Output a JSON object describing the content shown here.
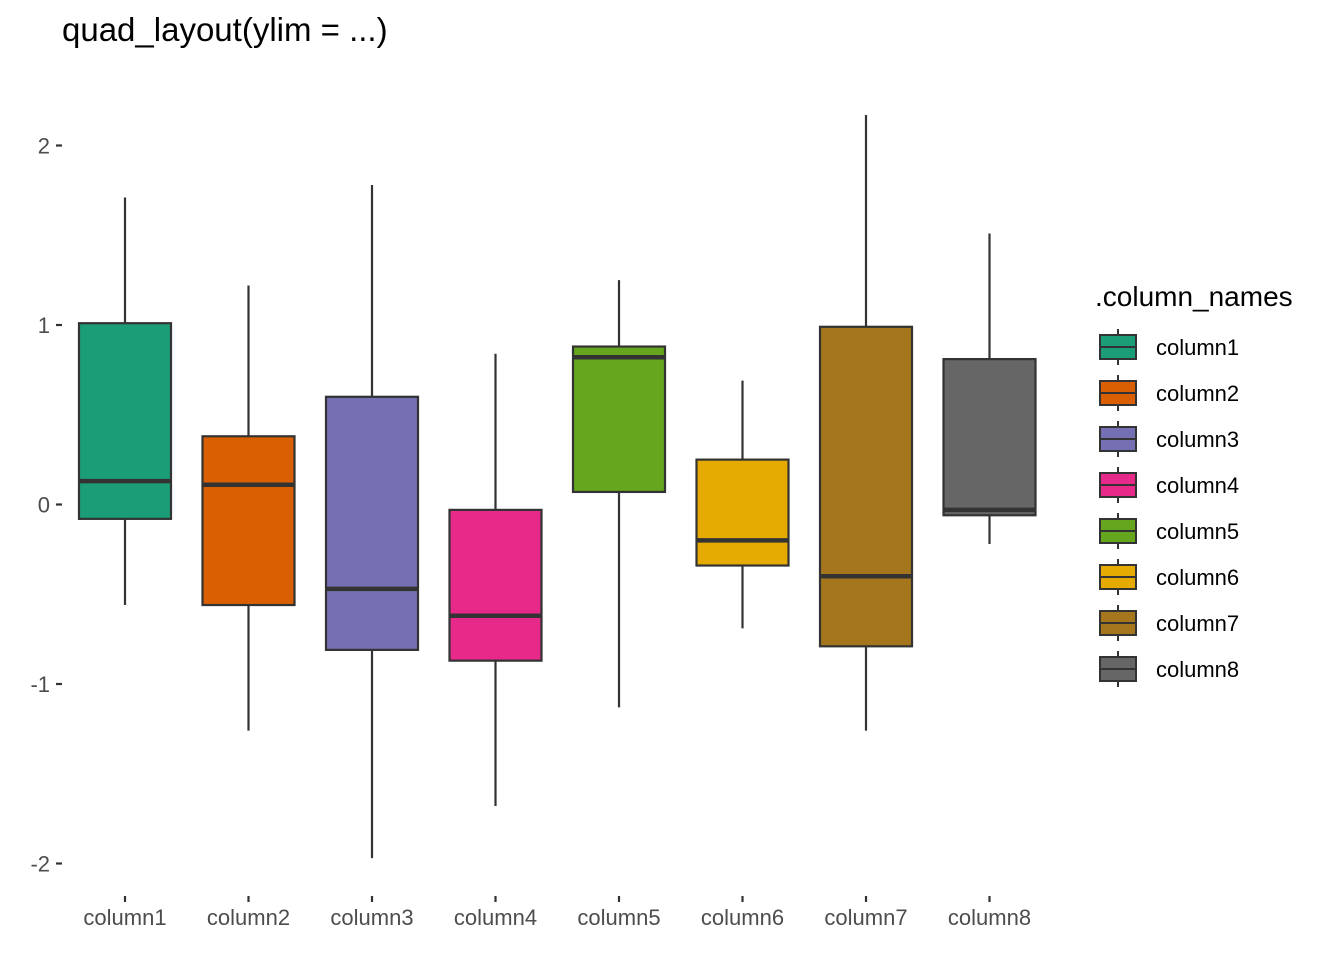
{
  "chart_data": {
    "type": "box",
    "title": "quad_layout(ylim = ...)",
    "xlabel": "",
    "ylabel": "",
    "ylim": [
      -2.2,
      2.2
    ],
    "y_ticks": [
      2,
      1,
      0,
      -1,
      -2
    ],
    "grid": false,
    "legend": {
      "title": ".column_names",
      "position": "right"
    },
    "categories": [
      "column1",
      "column2",
      "column3",
      "column4",
      "column5",
      "column6",
      "column7",
      "column8"
    ],
    "colors": [
      "#1b9e77",
      "#d95f02",
      "#7570b3",
      "#e7298a",
      "#66a61e",
      "#e6ab02",
      "#a6761d",
      "#666666"
    ],
    "boxes": [
      {
        "name": "column1",
        "min": -0.56,
        "q1": -0.08,
        "median": 0.13,
        "q3": 1.01,
        "max": 1.71
      },
      {
        "name": "column2",
        "min": -1.26,
        "q1": -0.56,
        "median": 0.11,
        "q3": 0.38,
        "max": 1.22
      },
      {
        "name": "column3",
        "min": -1.97,
        "q1": -0.81,
        "median": -0.47,
        "q3": 0.6,
        "max": 1.78
      },
      {
        "name": "column4",
        "min": -1.68,
        "q1": -0.87,
        "median": -0.62,
        "q3": -0.03,
        "max": 0.84
      },
      {
        "name": "column5",
        "min": -1.13,
        "q1": 0.07,
        "median": 0.82,
        "q3": 0.88,
        "max": 1.25
      },
      {
        "name": "column6",
        "min": -0.69,
        "q1": -0.34,
        "median": -0.2,
        "q3": 0.25,
        "max": 0.69
      },
      {
        "name": "column7",
        "min": -1.26,
        "q1": -0.79,
        "median": -0.4,
        "q3": 0.99,
        "max": 2.17
      },
      {
        "name": "column8",
        "min": -0.22,
        "q1": -0.06,
        "median": -0.03,
        "q3": 0.81,
        "max": 1.51
      }
    ]
  }
}
